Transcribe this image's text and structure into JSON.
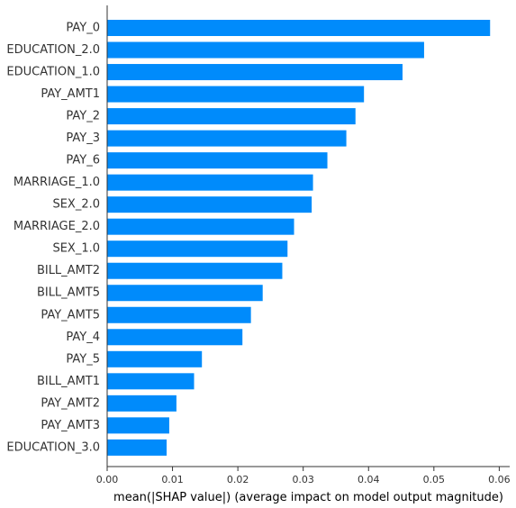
{
  "chart_data": {
    "type": "bar",
    "orientation": "horizontal",
    "categories": [
      "PAY_0",
      "EDUCATION_2.0",
      "EDUCATION_1.0",
      "PAY_AMT1",
      "PAY_2",
      "PAY_3",
      "PAY_6",
      "MARRIAGE_1.0",
      "SEX_2.0",
      "MARRIAGE_2.0",
      "SEX_1.0",
      "BILL_AMT2",
      "BILL_AMT5",
      "PAY_AMT5",
      "PAY_4",
      "PAY_5",
      "BILL_AMT1",
      "PAY_AMT2",
      "PAY_AMT3",
      "EDUCATION_3.0"
    ],
    "values": [
      0.0586,
      0.0485,
      0.0452,
      0.0393,
      0.038,
      0.0366,
      0.0337,
      0.0315,
      0.0313,
      0.0286,
      0.0276,
      0.0268,
      0.0238,
      0.022,
      0.0207,
      0.0145,
      0.0133,
      0.0106,
      0.0095,
      0.0091
    ],
    "xlabel": "mean(|SHAP value|) (average impact on model output magnitude)",
    "xlim": [
      0,
      0.0616
    ],
    "xticks": [
      0.0,
      0.01,
      0.02,
      0.03,
      0.04,
      0.05,
      0.06
    ],
    "xtick_labels": [
      "0.00",
      "0.01",
      "0.02",
      "0.03",
      "0.04",
      "0.05",
      "0.06"
    ],
    "grid": false,
    "bar_color": "#008bfb",
    "axis_color": "#333333"
  }
}
